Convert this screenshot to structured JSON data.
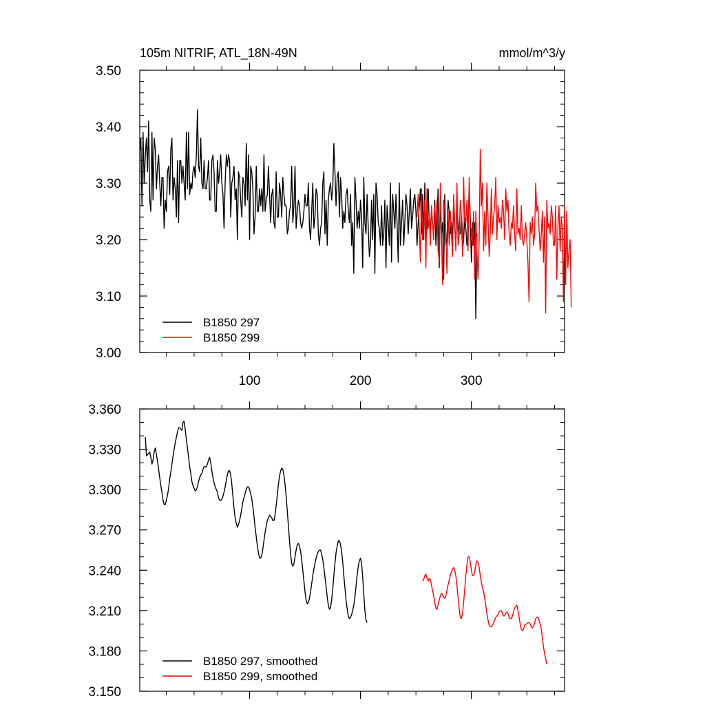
{
  "chart_data": [
    {
      "type": "line",
      "title": "105m NITRIF, ATL_18N-49N",
      "units": "mmol/m^3/y",
      "xlabel": "",
      "ylabel": "",
      "xlim": [
        1,
        384
      ],
      "ylim": [
        3.0,
        3.5
      ],
      "xticks": [
        100,
        200,
        300
      ],
      "xtick_labels": [
        "100",
        "200",
        "300"
      ],
      "yticks": [
        3.0,
        3.1,
        3.2,
        3.3,
        3.4,
        3.5
      ],
      "ytick_labels": [
        "3.00",
        "3.10",
        "3.20",
        "3.30",
        "3.40",
        "3.50"
      ],
      "legend_position": "bottom-left",
      "series": [
        {
          "name": "B1850 297",
          "color": "#000000",
          "x_start": 1,
          "values": [
            3.36,
            3.38,
            3.26,
            3.39,
            3.3,
            3.35,
            3.38,
            3.32,
            3.41,
            3.27,
            3.25,
            3.39,
            3.27,
            3.38,
            3.36,
            3.29,
            3.33,
            3.35,
            3.3,
            3.26,
            3.31,
            3.31,
            3.22,
            3.27,
            3.25,
            3.32,
            3.33,
            3.28,
            3.36,
            3.38,
            3.27,
            3.31,
            3.29,
            3.24,
            3.34,
            3.23,
            3.34,
            3.34,
            3.3,
            3.33,
            3.3,
            3.27,
            3.39,
            3.29,
            3.39,
            3.28,
            3.3,
            3.29,
            3.32,
            3.33,
            3.31,
            3.35,
            3.43,
            3.33,
            3.32,
            3.38,
            3.3,
            3.29,
            3.34,
            3.29,
            3.29,
            3.31,
            3.34,
            3.27,
            3.27,
            3.34,
            3.35,
            3.32,
            3.25,
            3.25,
            3.34,
            3.3,
            3.32,
            3.35,
            3.3,
            3.28,
            3.22,
            3.3,
            3.35,
            3.33,
            3.35,
            3.34,
            3.24,
            3.3,
            3.31,
            3.33,
            3.27,
            3.29,
            3.2,
            3.32,
            3.31,
            3.27,
            3.24,
            3.31,
            3.3,
            3.26,
            3.37,
            3.27,
            3.35,
            3.2,
            3.33,
            3.32,
            3.29,
            3.21,
            3.24,
            3.33,
            3.25,
            3.25,
            3.29,
            3.26,
            3.29,
            3.25,
            3.35,
            3.25,
            3.27,
            3.28,
            3.33,
            3.28,
            3.23,
            3.28,
            3.29,
            3.23,
            3.22,
            3.32,
            3.24,
            3.24,
            3.3,
            3.28,
            3.24,
            3.31,
            3.28,
            3.26,
            3.26,
            3.21,
            3.22,
            3.25,
            3.26,
            3.33,
            3.23,
            3.26,
            3.33,
            3.22,
            3.25,
            3.27,
            3.26,
            3.23,
            3.22,
            3.23,
            3.25,
            3.28,
            3.26,
            3.26,
            3.3,
            3.22,
            3.2,
            3.25,
            3.3,
            3.22,
            3.24,
            3.29,
            3.28,
            3.21,
            3.19,
            3.22,
            3.23,
            3.3,
            3.32,
            3.21,
            3.27,
            3.19,
            3.27,
            3.29,
            3.3,
            3.27,
            3.29,
            3.37,
            3.32,
            3.26,
            3.31,
            3.32,
            3.24,
            3.31,
            3.28,
            3.22,
            3.25,
            3.23,
            3.28,
            3.29,
            3.25,
            3.23,
            3.28,
            3.19,
            3.23,
            3.14,
            3.31,
            3.27,
            3.22,
            3.25,
            3.22,
            3.27,
            3.24,
            3.15,
            3.31,
            3.23,
            3.21,
            3.28,
            3.22,
            3.17,
            3.19,
            3.27,
            3.2,
            3.28,
            3.14,
            3.3,
            3.28,
            3.23,
            3.22,
            3.19,
            3.26,
            3.19,
            3.21,
            3.27,
            3.15,
            3.26,
            3.23,
            3.19,
            3.3,
            3.16,
            3.28,
            3.25,
            3.22,
            3.28,
            3.23,
            3.16,
            3.3,
            3.19,
            3.23,
            3.27,
            3.19,
            3.23,
            3.28,
            3.26,
            3.21,
            3.25,
            3.29,
            3.22,
            3.24,
            3.27,
            3.28,
            3.25,
            3.19,
            3.23,
            3.26,
            3.29,
            3.21,
            3.28,
            3.2,
            3.3,
            3.2,
            3.22,
            3.29,
            3.23,
            3.22,
            3.25,
            3.23,
            3.2,
            3.27,
            3.19,
            3.23,
            3.29,
            3.15,
            3.27,
            3.21,
            3.23,
            3.13,
            3.28,
            3.19,
            3.2,
            3.27,
            3.25,
            3.21,
            3.23,
            3.2,
            3.27,
            3.22,
            3.19,
            3.26,
            3.23,
            3.21,
            3.21,
            3.24,
            3.18,
            3.2,
            3.24,
            3.22,
            3.19,
            3.22,
            3.29,
            3.24,
            3.16,
            3.23,
            3.19,
            3.23,
            3.06,
            3.21
          ]
        },
        {
          "name": "B1850 299",
          "color": "#ff0000",
          "x_start": 251,
          "values": [
            3.24,
            3.28,
            3.22,
            3.16,
            3.29,
            3.2,
            3.23,
            3.27,
            3.15,
            3.29,
            3.22,
            3.24,
            3.19,
            3.26,
            3.23,
            3.2,
            3.26,
            3.22,
            3.27,
            3.18,
            3.16,
            3.3,
            3.21,
            3.12,
            3.27,
            3.25,
            3.21,
            3.14,
            3.25,
            3.19,
            3.25,
            3.21,
            3.17,
            3.28,
            3.23,
            3.18,
            3.3,
            3.19,
            3.21,
            3.27,
            3.24,
            3.17,
            3.31,
            3.23,
            3.23,
            3.27,
            3.18,
            3.31,
            3.22,
            3.22,
            3.19,
            3.25,
            3.13,
            3.25,
            3.18,
            3.13,
            3.2,
            3.36,
            3.26,
            3.3,
            3.18,
            3.25,
            3.19,
            3.3,
            3.24,
            3.17,
            3.21,
            3.29,
            3.21,
            3.24,
            3.26,
            3.31,
            3.2,
            3.26,
            3.23,
            3.24,
            3.22,
            3.27,
            3.25,
            3.2,
            3.29,
            3.25,
            3.27,
            3.21,
            3.19,
            3.23,
            3.22,
            3.26,
            3.21,
            3.18,
            3.29,
            3.21,
            3.22,
            3.2,
            3.26,
            3.2,
            3.19,
            3.21,
            3.23,
            3.2,
            3.16,
            3.09,
            3.23,
            3.21,
            3.24,
            3.19,
            3.21,
            3.3,
            3.25,
            3.26,
            3.22,
            3.18,
            3.21,
            3.25,
            3.16,
            3.24,
            3.07,
            3.27,
            3.22,
            3.23,
            3.21,
            3.26,
            3.24,
            3.19,
            3.19,
            3.26,
            3.13,
            3.22,
            3.26,
            3.18,
            3.24,
            3.22,
            3.09,
            3.26,
            3.12,
            3.25,
            3.15,
            3.18,
            3.2,
            3.08
          ]
        }
      ]
    },
    {
      "type": "line",
      "title": "",
      "xlabel": "",
      "ylabel": "",
      "xlim": [
        1,
        384
      ],
      "ylim": [
        3.15,
        3.36
      ],
      "xticks": [
        100,
        200,
        300
      ],
      "xtick_labels": [],
      "yticks": [
        3.15,
        3.18,
        3.21,
        3.24,
        3.27,
        3.3,
        3.33,
        3.36
      ],
      "ytick_labels": [
        "3.150",
        "3.180",
        "3.210",
        "3.240",
        "3.270",
        "3.300",
        "3.330",
        "3.360"
      ],
      "legend_position": "bottom-left",
      "series": [
        {
          "name": "B1850 297, smoothed",
          "color": "#000000",
          "x_start": 6,
          "values": [
            3.339,
            3.325,
            3.326,
            3.327,
            3.328,
            3.324,
            3.319,
            3.322,
            3.328,
            3.331,
            3.326,
            3.321,
            3.315,
            3.309,
            3.303,
            3.298,
            3.292,
            3.289,
            3.289,
            3.292,
            3.296,
            3.301,
            3.308,
            3.313,
            3.319,
            3.325,
            3.33,
            3.335,
            3.339,
            3.343,
            3.346,
            3.346,
            3.345,
            3.344,
            3.35,
            3.351,
            3.345,
            3.337,
            3.331,
            3.324,
            3.317,
            3.312,
            3.306,
            3.303,
            3.301,
            3.299,
            3.3,
            3.302,
            3.306,
            3.309,
            3.311,
            3.312,
            3.315,
            3.317,
            3.317,
            3.317,
            3.319,
            3.322,
            3.324,
            3.32,
            3.314,
            3.309,
            3.305,
            3.302,
            3.3,
            3.298,
            3.294,
            3.292,
            3.292,
            3.293,
            3.295,
            3.298,
            3.302,
            3.307,
            3.311,
            3.314,
            3.314,
            3.311,
            3.304,
            3.295,
            3.286,
            3.279,
            3.275,
            3.272,
            3.274,
            3.277,
            3.281,
            3.286,
            3.291,
            3.294,
            3.297,
            3.3,
            3.302,
            3.302,
            3.3,
            3.297,
            3.293,
            3.287,
            3.28,
            3.272,
            3.265,
            3.258,
            3.253,
            3.249,
            3.249,
            3.251,
            3.256,
            3.262,
            3.268,
            3.273,
            3.277,
            3.279,
            3.281,
            3.28,
            3.279,
            3.277,
            3.277,
            3.281,
            3.288,
            3.296,
            3.304,
            3.31,
            3.314,
            3.316,
            3.315,
            3.311,
            3.304,
            3.295,
            3.284,
            3.273,
            3.262,
            3.252,
            3.245,
            3.243,
            3.245,
            3.25,
            3.255,
            3.259,
            3.26,
            3.258,
            3.254,
            3.248,
            3.24,
            3.232,
            3.224,
            3.218,
            3.215,
            3.216,
            3.219,
            3.224,
            3.23,
            3.236,
            3.241,
            3.245,
            3.249,
            3.252,
            3.254,
            3.255,
            3.255,
            3.252,
            3.248,
            3.242,
            3.235,
            3.228,
            3.22,
            3.214,
            3.211,
            3.212,
            3.218,
            3.226,
            3.236,
            3.245,
            3.253,
            3.258,
            3.262,
            3.262,
            3.259,
            3.254,
            3.246,
            3.236,
            3.227,
            3.218,
            3.211,
            3.206,
            3.204,
            3.205,
            3.207,
            3.21,
            3.214,
            3.22,
            3.228,
            3.236,
            3.243,
            3.247,
            3.249,
            3.245,
            3.235,
            3.222,
            3.21,
            3.203,
            3.201
          ]
        },
        {
          "name": "B1850 299, smoothed",
          "color": "#ff0000",
          "x_start": 256,
          "values": [
            3.232,
            3.233,
            3.236,
            3.237,
            3.234,
            3.232,
            3.234,
            3.233,
            3.229,
            3.225,
            3.221,
            3.216,
            3.212,
            3.211,
            3.214,
            3.218,
            3.221,
            3.223,
            3.222,
            3.22,
            3.219,
            3.221,
            3.225,
            3.229,
            3.233,
            3.236,
            3.239,
            3.241,
            3.242,
            3.24,
            3.236,
            3.229,
            3.22,
            3.211,
            3.205,
            3.204,
            3.208,
            3.216,
            3.226,
            3.236,
            3.244,
            3.25,
            3.25,
            3.246,
            3.24,
            3.236,
            3.236,
            3.239,
            3.244,
            3.247,
            3.246,
            3.242,
            3.236,
            3.231,
            3.227,
            3.224,
            3.219,
            3.214,
            3.208,
            3.203,
            3.199,
            3.198,
            3.198,
            3.199,
            3.201,
            3.203,
            3.205,
            3.206,
            3.207,
            3.209,
            3.21,
            3.21,
            3.208,
            3.206,
            3.206,
            3.208,
            3.209,
            3.208,
            3.205,
            3.204,
            3.204,
            3.206,
            3.209,
            3.212,
            3.213,
            3.214,
            3.21,
            3.205,
            3.2,
            3.196,
            3.195,
            3.196,
            3.199,
            3.2,
            3.2,
            3.201,
            3.201,
            3.2,
            3.198,
            3.197,
            3.198,
            3.201,
            3.204,
            3.205,
            3.205,
            3.203,
            3.2,
            3.196,
            3.19,
            3.183,
            3.178,
            3.174,
            3.17
          ]
        }
      ]
    }
  ]
}
